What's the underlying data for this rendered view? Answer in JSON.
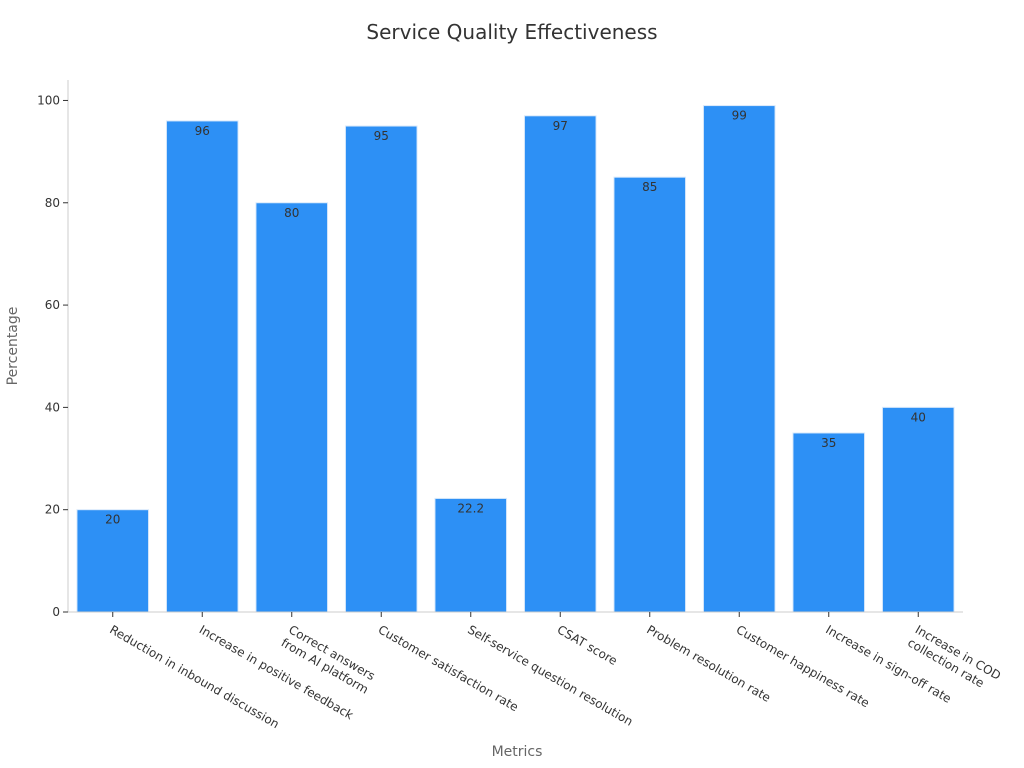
{
  "chart_data": {
    "type": "bar",
    "title": "Service Quality Effectiveness",
    "xlabel": "Metrics",
    "ylabel": "Percentage",
    "ylim": [
      0,
      104
    ],
    "yticks": [
      0,
      20,
      40,
      60,
      80,
      100
    ],
    "grid": false,
    "categories": [
      [
        "Reduction in inbound discussion"
      ],
      [
        "Increase in positive feedback"
      ],
      [
        "Correct answers",
        "from AI platform"
      ],
      [
        "Customer satisfaction rate"
      ],
      [
        "Self-service question resolution"
      ],
      [
        "CSAT score"
      ],
      [
        "Problem resolution rate"
      ],
      [
        "Customer happiness rate"
      ],
      [
        "Increase in sign-off rate"
      ],
      [
        "Increase in COD",
        "collection rate"
      ]
    ],
    "values": [
      20,
      96,
      80,
      95,
      22.2,
      97,
      85,
      99,
      35,
      40
    ],
    "colors": {
      "bar": "#2d90f5",
      "bar_edge": "#d9e9fb",
      "axis": "#cccccc",
      "text": "#333333"
    }
  }
}
